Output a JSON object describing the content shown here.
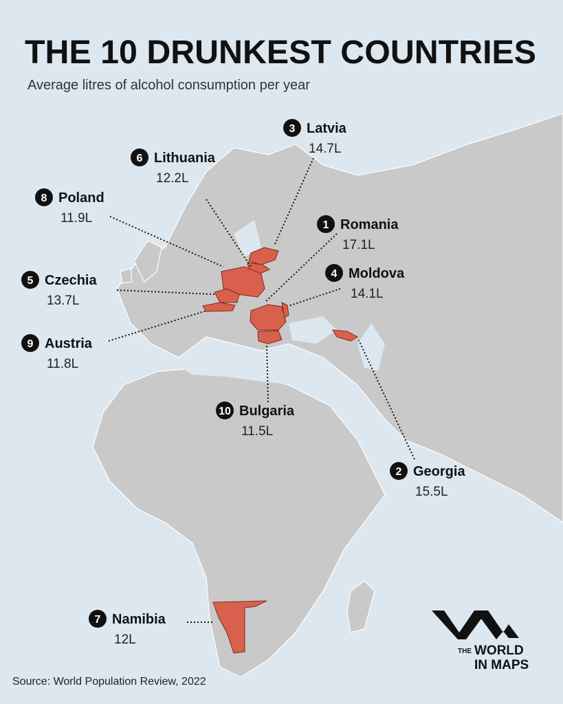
{
  "header": {
    "title": "THE 10 DRUNKEST COUNTRIES",
    "subtitle": "Average litres of alcohol consumption per year"
  },
  "countries": [
    {
      "rank": 1,
      "name": "Romania",
      "value": "17.1L"
    },
    {
      "rank": 2,
      "name": "Georgia",
      "value": "15.5L"
    },
    {
      "rank": 3,
      "name": "Latvia",
      "value": "14.7L"
    },
    {
      "rank": 4,
      "name": "Moldova",
      "value": "14.1L"
    },
    {
      "rank": 5,
      "name": "Czechia",
      "value": "13.7L"
    },
    {
      "rank": 6,
      "name": "Lithuania",
      "value": "12.2L"
    },
    {
      "rank": 7,
      "name": "Namibia",
      "value": "12L"
    },
    {
      "rank": 8,
      "name": "Poland",
      "value": "11.9L"
    },
    {
      "rank": 9,
      "name": "Austria",
      "value": "11.8L"
    },
    {
      "rank": 10,
      "name": "Bulgaria",
      "value": "11.5L"
    }
  ],
  "footer": {
    "source": "Source: World Population Review, 2022"
  },
  "logo": {
    "small": "THE",
    "line1": "WORLD",
    "line2": "IN MAPS"
  }
}
